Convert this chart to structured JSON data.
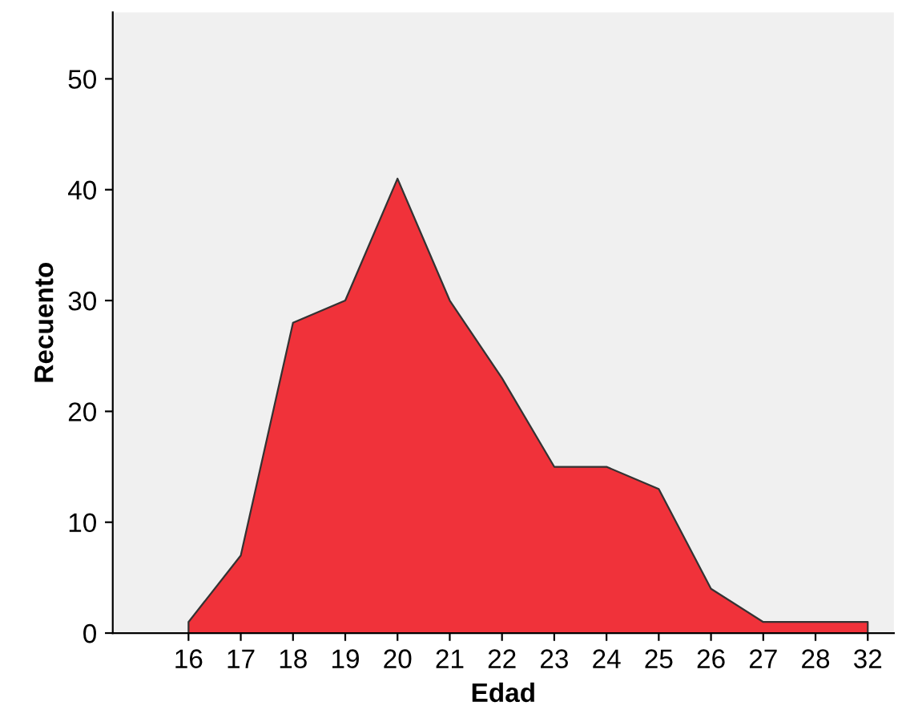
{
  "chart_data": {
    "type": "area",
    "xlabel": "Edad",
    "ylabel": "Recuento",
    "categories": [
      "16",
      "17",
      "18",
      "19",
      "20",
      "21",
      "22",
      "23",
      "24",
      "25",
      "26",
      "27",
      "28",
      "32"
    ],
    "series": [
      {
        "color": "#f0323a",
        "values": [
          1,
          7,
          28,
          30,
          41,
          30,
          23,
          15,
          15,
          13,
          4,
          1,
          1,
          1
        ]
      }
    ],
    "ylim": [
      0,
      56
    ],
    "yticks": [
      0,
      10,
      20,
      30,
      40,
      50
    ],
    "grid": false,
    "legend": false
  }
}
